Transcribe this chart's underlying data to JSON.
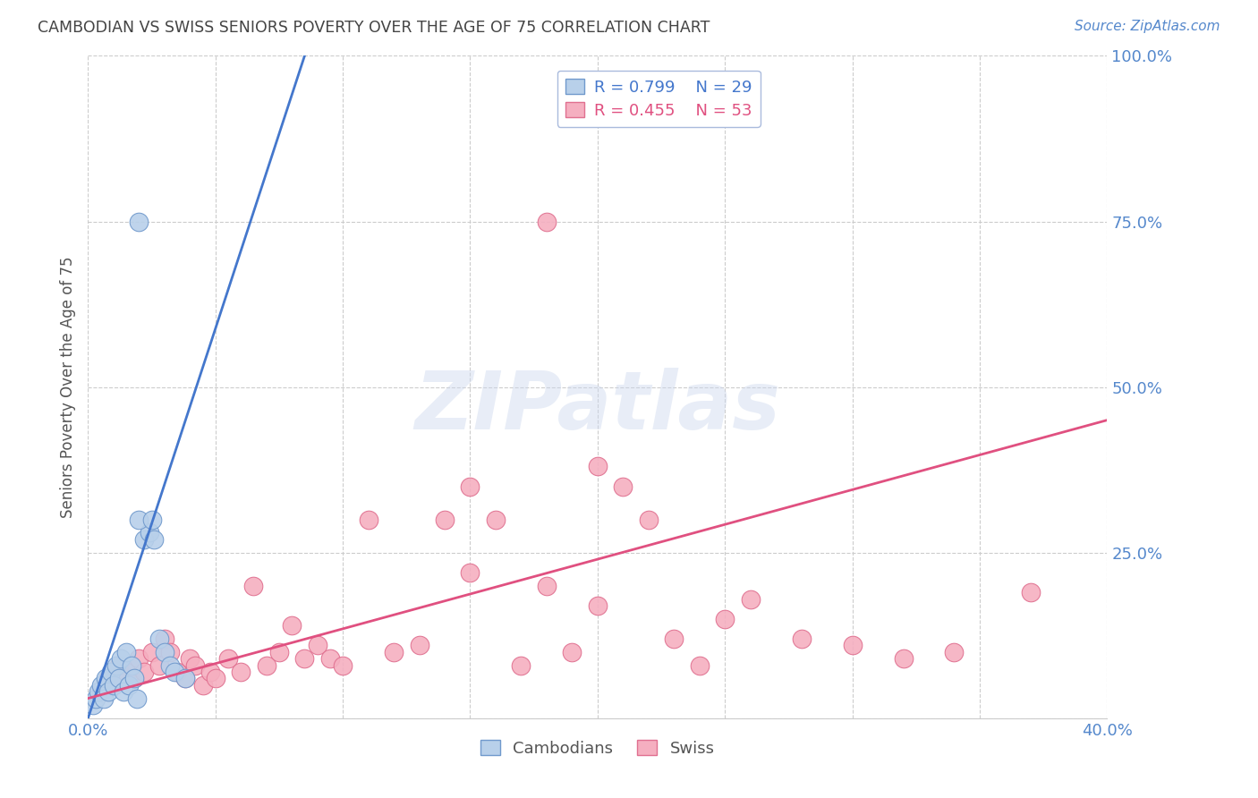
{
  "title": "CAMBODIAN VS SWISS SENIORS POVERTY OVER THE AGE OF 75 CORRELATION CHART",
  "source": "Source: ZipAtlas.com",
  "ylabel": "Seniors Poverty Over the Age of 75",
  "xlim": [
    0.0,
    0.4
  ],
  "ylim": [
    0.0,
    1.0
  ],
  "xticks": [
    0.0,
    0.05,
    0.1,
    0.15,
    0.2,
    0.25,
    0.3,
    0.35,
    0.4
  ],
  "xticklabels": [
    "0.0%",
    "",
    "",
    "",
    "",
    "",
    "",
    "",
    "40.0%"
  ],
  "yticks": [
    0.0,
    0.25,
    0.5,
    0.75,
    1.0
  ],
  "yticklabels": [
    "",
    "25.0%",
    "50.0%",
    "75.0%",
    "100.0%"
  ],
  "cambodian_color": "#b8d0ea",
  "swiss_color": "#f5afc0",
  "cambodian_edge": "#7099cc",
  "swiss_edge": "#e07090",
  "line_cambodian_color": "#4477cc",
  "line_swiss_color": "#e05080",
  "legend_cambodian_label": "Cambodians",
  "legend_swiss_label": "Swiss",
  "R_cambodian": 0.799,
  "N_cambodian": 29,
  "R_swiss": 0.455,
  "N_swiss": 53,
  "watermark": "ZIPatlas",
  "background_color": "#ffffff",
  "grid_color": "#cccccc",
  "axis_color": "#5588cc",
  "title_color": "#444444",
  "cam_line_x0": 0.0,
  "cam_line_y0": 0.0,
  "cam_line_x1": 0.085,
  "cam_line_y1": 1.0,
  "swiss_line_x0": 0.0,
  "swiss_line_y0": 0.03,
  "swiss_line_x1": 0.4,
  "swiss_line_y1": 0.45,
  "cambodian_x": [
    0.002,
    0.003,
    0.004,
    0.005,
    0.006,
    0.007,
    0.008,
    0.009,
    0.01,
    0.011,
    0.012,
    0.013,
    0.014,
    0.015,
    0.016,
    0.017,
    0.018,
    0.019,
    0.02,
    0.022,
    0.024,
    0.026,
    0.028,
    0.03,
    0.032,
    0.034,
    0.038,
    0.02,
    0.025
  ],
  "cambodian_y": [
    0.02,
    0.03,
    0.04,
    0.05,
    0.03,
    0.06,
    0.04,
    0.07,
    0.05,
    0.08,
    0.06,
    0.09,
    0.04,
    0.1,
    0.05,
    0.08,
    0.06,
    0.03,
    0.75,
    0.27,
    0.28,
    0.27,
    0.12,
    0.1,
    0.08,
    0.07,
    0.06,
    0.3,
    0.3
  ],
  "swiss_x": [
    0.005,
    0.008,
    0.01,
    0.012,
    0.015,
    0.018,
    0.02,
    0.022,
    0.025,
    0.028,
    0.03,
    0.032,
    0.035,
    0.038,
    0.04,
    0.042,
    0.045,
    0.048,
    0.05,
    0.055,
    0.06,
    0.065,
    0.07,
    0.075,
    0.08,
    0.085,
    0.09,
    0.095,
    0.1,
    0.11,
    0.12,
    0.13,
    0.14,
    0.15,
    0.16,
    0.17,
    0.18,
    0.19,
    0.2,
    0.21,
    0.22,
    0.23,
    0.24,
    0.25,
    0.26,
    0.28,
    0.3,
    0.32,
    0.34,
    0.37,
    0.18,
    0.2,
    0.15
  ],
  "swiss_y": [
    0.04,
    0.06,
    0.05,
    0.08,
    0.07,
    0.06,
    0.09,
    0.07,
    0.1,
    0.08,
    0.12,
    0.1,
    0.07,
    0.06,
    0.09,
    0.08,
    0.05,
    0.07,
    0.06,
    0.09,
    0.07,
    0.2,
    0.08,
    0.1,
    0.14,
    0.09,
    0.11,
    0.09,
    0.08,
    0.3,
    0.1,
    0.11,
    0.3,
    0.35,
    0.3,
    0.08,
    0.2,
    0.1,
    0.17,
    0.35,
    0.3,
    0.12,
    0.08,
    0.15,
    0.18,
    0.12,
    0.11,
    0.09,
    0.1,
    0.19,
    0.75,
    0.38,
    0.22
  ]
}
